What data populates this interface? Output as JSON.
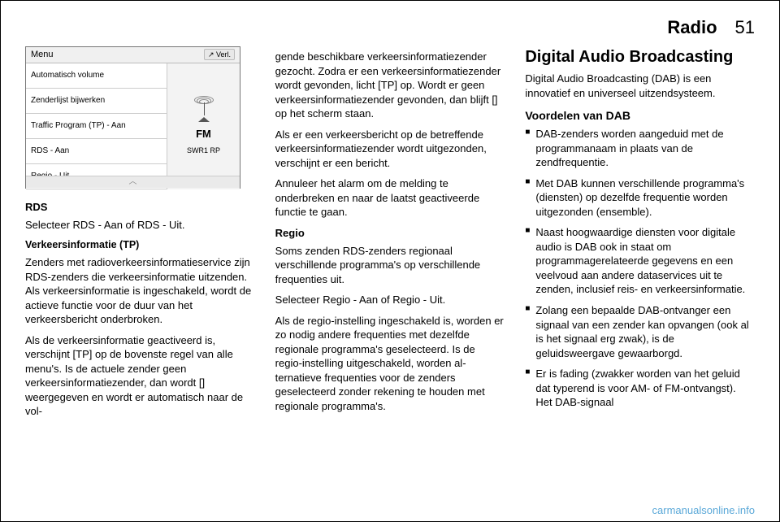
{
  "header": {
    "section": "Radio",
    "page": "51"
  },
  "screenshot": {
    "menu_label": "Menu",
    "verl_label": "↗ Verl.",
    "items": [
      "Automatisch volume",
      "Zenderlijst bijwerken",
      "Traffic Program (TP) - Aan",
      "RDS - Aan",
      "Regio - Uit"
    ],
    "band": "FM",
    "station": "SWR1 RP",
    "arrow": "︿"
  },
  "col1": {
    "rds_label": "RDS",
    "rds_text": "Selecteer RDS - Aan of RDS - Uit.",
    "tp_label": "Verkeersinformatie (TP)",
    "tp_p1": "Zenders met radioverkeersinformatie­service zijn RDS-zenders die ver­keersinformatie uitzenden. Als ver­keersinformatie is ingeschakeld, wordt de actieve functie voor de duur van het verkeersbericht onderbroken.",
    "tp_p2": "Als de verkeersinformatie geacti­veerd is, verschijnt [TP] op de boven­ste regel van alle menu's. Is de ac­tuele zender geen verkeersinforma­tiezender, dan wordt [] weergegeven en wordt er automatisch naar de vol-"
  },
  "col2": {
    "p1": "gende beschikbare verkeersinforma­tiezender gezocht. Zodra er een ver­keersinformatiezender wordt gevon­den, licht [TP] op. Wordt er geen ver­keersinformatiezender gevonden, dan blijft [] op het scherm staan.",
    "p2": "Als er een verkeersbericht op de be­treffende verkeersinformatiezender wordt uitgezonden, verschijnt er een bericht.",
    "p3": "Annuleer het alarm om de melding te onderbreken en naar de laatst geac­tiveerde functie te gaan.",
    "regio_label": "Regio",
    "regio_p1": "Soms zenden RDS-zenders regio­naal verschillende programma's op verschillende frequenties uit.",
    "regio_p2": "Selecteer Regio - Aan of Regio - Uit.",
    "regio_p3": "Als de regio-instelling ingeschakeld is, worden er zo nodig andere fre­quenties met dezelfde regionale pro­gramma's geselecteerd. Is de regio-instelling uitgeschakeld, worden al­ternatieve frequenties voor de zen­ders geselecteerd zonder rekening te houden met regionale programma's."
  },
  "col3": {
    "heading": "Digital Audio Broadcasting",
    "intro": "Digital Audio Broadcasting (DAB) is een innovatief en universeel uitzend­systeem.",
    "sub": "Voordelen van DAB",
    "bullets": [
      "DAB-zenders worden aangeduid met de programmanaam in plaats van de zendfrequentie.",
      "Met DAB kunnen verschillende pro­gramma's (diensten) op dezelfde frequentie worden uitgezonden (ensemble).",
      "Naast hoogwaardige diensten voor digitale audio is DAB ook in staat om programmagerelateerde gege­vens en een veelvoud aan andere dataservices uit te zenden, inclusief reis- en verkeersinformatie.",
      "Zolang een bepaalde DAB-ontvan­ger een signaal van een zender kan opvangen (ook al is het signaal erg zwak), is de geluidsweergave ge­waarborgd.",
      "Er is fading (zwakker worden van het geluid dat typerend is voor AM- of FM-ontvangst). Het DAB-signaal"
    ]
  },
  "footer": "carmanualsonline.info"
}
